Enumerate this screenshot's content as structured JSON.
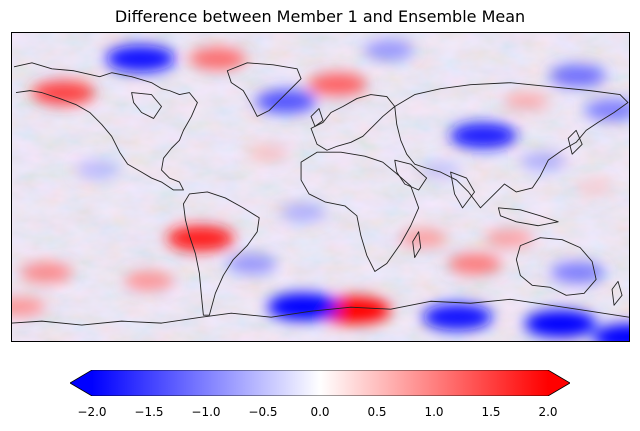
{
  "title": "Difference between Member 1 and Ensemble Mean",
  "colormap": {
    "low": "#0000ff",
    "mid": "#ffffff",
    "high": "#ff0000"
  },
  "colorbar": {
    "vmin": -2.0,
    "vmax": 2.0,
    "extend": "both",
    "ticks": [
      {
        "value": -2.0,
        "label": "−2.0"
      },
      {
        "value": -1.5,
        "label": "−1.5"
      },
      {
        "value": -1.0,
        "label": "−1.0"
      },
      {
        "value": -0.5,
        "label": "−0.5"
      },
      {
        "value": 0.0,
        "label": "0.0"
      },
      {
        "value": 0.5,
        "label": "0.5"
      },
      {
        "value": 1.0,
        "label": "1.0"
      },
      {
        "value": 1.5,
        "label": "1.5"
      },
      {
        "value": 2.0,
        "label": "2.0"
      }
    ]
  },
  "map": {
    "projection": "PlateCarree",
    "coastline_color": "#222222",
    "field_regions": [
      {
        "lon": -105,
        "lat": 75,
        "value": -1.9
      },
      {
        "lon": 180,
        "lat": -88,
        "value": -2.0
      },
      {
        "lon": 80,
        "lat": -76,
        "value": -1.9
      },
      {
        "lon": 140,
        "lat": -80,
        "value": -2.0
      },
      {
        "lon": 20,
        "lat": -72,
        "value": 2.0
      },
      {
        "lon": -10,
        "lat": -70,
        "value": -2.0
      },
      {
        "lon": -70,
        "lat": -30,
        "value": 1.8
      },
      {
        "lon": 95,
        "lat": 30,
        "value": -1.8
      },
      {
        "lon": -150,
        "lat": 55,
        "value": 1.6
      },
      {
        "lon": -20,
        "lat": 50,
        "value": -1.5
      },
      {
        "lon": 10,
        "lat": 60,
        "value": 1.4
      },
      {
        "lon": 150,
        "lat": 65,
        "value": -1.3
      },
      {
        "lon": 170,
        "lat": 45,
        "value": -1.2
      },
      {
        "lon": 90,
        "lat": -45,
        "value": 1.2
      },
      {
        "lon": -160,
        "lat": -50,
        "value": 1.1
      },
      {
        "lon": -100,
        "lat": -55,
        "value": 1.0
      },
      {
        "lon": 150,
        "lat": -50,
        "value": -1.2
      },
      {
        "lon": -40,
        "lat": -45,
        "value": -1.0
      },
      {
        "lon": 60,
        "lat": -30,
        "value": 0.9
      },
      {
        "lon": -130,
        "lat": 10,
        "value": -0.7
      },
      {
        "lon": 130,
        "lat": 15,
        "value": -0.8
      },
      {
        "lon": 70,
        "lat": 10,
        "value": -0.6
      },
      {
        "lon": -30,
        "lat": 20,
        "value": 0.6
      },
      {
        "lon": 160,
        "lat": 0,
        "value": 0.5
      },
      {
        "lon": -10,
        "lat": -15,
        "value": -0.8
      },
      {
        "lon": 110,
        "lat": -30,
        "value": 0.9
      },
      {
        "lon": -60,
        "lat": 75,
        "value": 1.3
      },
      {
        "lon": 40,
        "lat": 80,
        "value": -1.0
      },
      {
        "lon": -175,
        "lat": -70,
        "value": 1.0
      },
      {
        "lon": 120,
        "lat": 50,
        "value": 0.8
      }
    ]
  }
}
